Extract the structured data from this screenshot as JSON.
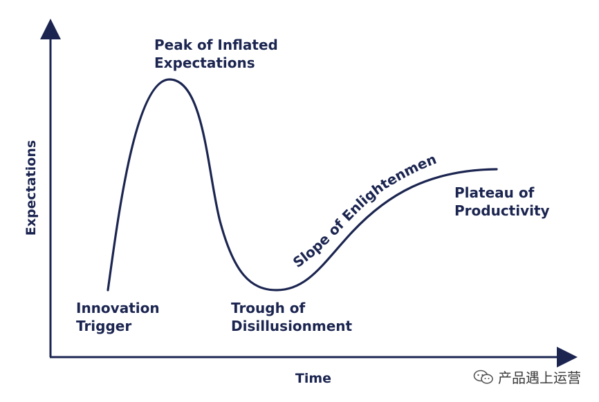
{
  "axes": {
    "y_label": "Expectations",
    "x_label": "Time"
  },
  "phases": {
    "trigger": [
      "Innovation",
      "Trigger"
    ],
    "peak": [
      "Peak of Inflated",
      "Expectations"
    ],
    "trough": [
      "Trough of",
      "Disillusionment"
    ],
    "slope": "Slope of Enlightenment",
    "plateau": [
      "Plateau of",
      "Productivity"
    ]
  },
  "colors": {
    "ink": "#1b2550"
  },
  "watermark": {
    "icon": "wechat-icon",
    "text": "产品遇上运营"
  }
}
